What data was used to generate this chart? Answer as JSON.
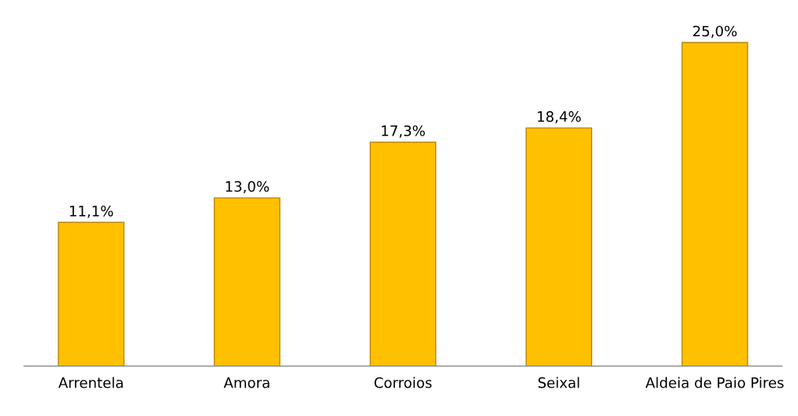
{
  "chart_data": {
    "type": "bar",
    "categories": [
      "Arrentela",
      "Amora",
      "Corroios",
      "Seixal",
      "Aldeia de Paio Pires"
    ],
    "values": [
      11.1,
      13.0,
      17.3,
      18.4,
      25.0
    ],
    "value_labels": [
      "11,1%",
      "13,0%",
      "17,3%",
      "18,4%",
      "25,0%"
    ],
    "color": "#ffc000",
    "grid": false,
    "legend": false
  }
}
